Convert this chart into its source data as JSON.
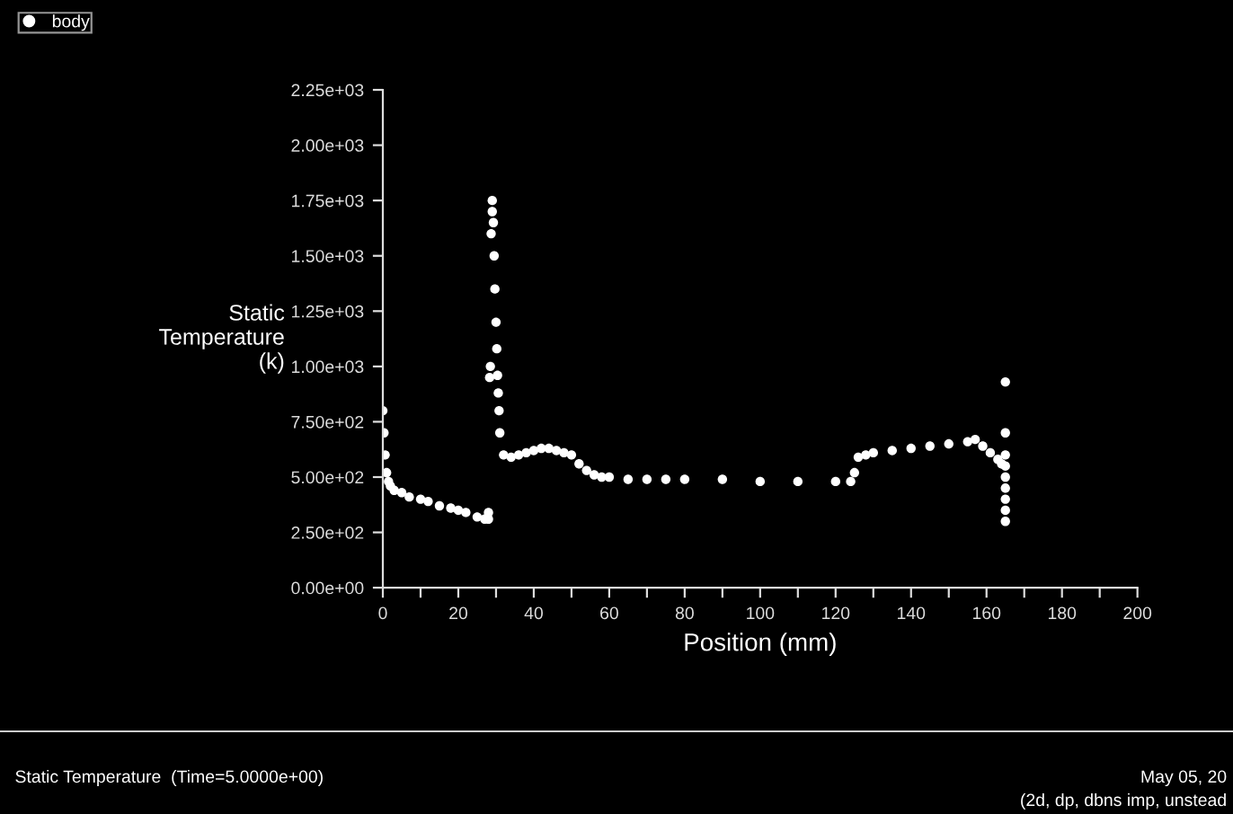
{
  "chart_data": {
    "type": "scatter",
    "xlabel": "Position (mm)",
    "ylabel": "Static\nTemperature\n(k)",
    "x": [
      0,
      0.3,
      0.6,
      1,
      1.5,
      2,
      3,
      5,
      7,
      10,
      12,
      15,
      18,
      20,
      22,
      25,
      27,
      28,
      28,
      28.3,
      28.5,
      28.7,
      29,
      29,
      29.3,
      29.5,
      29.7,
      30,
      30.2,
      30.4,
      30.6,
      30.8,
      31,
      32,
      34,
      36,
      38,
      40,
      42,
      44,
      46,
      48,
      50,
      52,
      54,
      56,
      58,
      60,
      65,
      70,
      75,
      80,
      90,
      100,
      110,
      120,
      124,
      125,
      126,
      128,
      130,
      135,
      140,
      145,
      150,
      155,
      157,
      159,
      161,
      163,
      164,
      165,
      165,
      165,
      165,
      165,
      165,
      165,
      165,
      165
    ],
    "series": [
      {
        "name": "body",
        "color": "#ffffff",
        "values": [
          800,
          700,
          600,
          520,
          480,
          460,
          440,
          430,
          410,
          400,
          390,
          370,
          360,
          350,
          340,
          320,
          310,
          310,
          340,
          950,
          1000,
          1600,
          1750,
          1700,
          1650,
          1500,
          1350,
          1200,
          1080,
          960,
          880,
          800,
          700,
          600,
          590,
          600,
          610,
          620,
          630,
          630,
          620,
          610,
          600,
          560,
          530,
          510,
          500,
          500,
          490,
          490,
          490,
          490,
          490,
          480,
          480,
          480,
          480,
          520,
          590,
          600,
          610,
          620,
          630,
          640,
          650,
          660,
          670,
          640,
          610,
          580,
          560,
          300,
          350,
          400,
          450,
          500,
          550,
          600,
          700,
          930
        ]
      }
    ],
    "xlim": [
      0,
      200
    ],
    "xticks": [
      0,
      {
        "value": 10,
        "label": null
      },
      20,
      {
        "value": 30,
        "label": null
      },
      40,
      {
        "value": 50,
        "label": null
      },
      60,
      {
        "value": 70,
        "label": null
      },
      80,
      {
        "value": 90,
        "label": null
      },
      100,
      {
        "value": 110,
        "label": null
      },
      120,
      {
        "value": 130,
        "label": null
      },
      140,
      {
        "value": 150,
        "label": null
      },
      160,
      {
        "value": 170,
        "label": null
      },
      180,
      {
        "value": 190,
        "label": null
      },
      200
    ],
    "ylim": [
      0,
      2250
    ],
    "yticks": [
      {
        "value": 0,
        "label": "0.00e+00"
      },
      {
        "value": 250,
        "label": "2.50e+02"
      },
      {
        "value": 500,
        "label": "5.00e+02"
      },
      {
        "value": 750,
        "label": "7.50e+02"
      },
      {
        "value": 1000,
        "label": "1.00e+03"
      },
      {
        "value": 1250,
        "label": "1.25e+03"
      },
      {
        "value": 1500,
        "label": "1.50e+03"
      },
      {
        "value": 1750,
        "label": "1.75e+03"
      },
      {
        "value": 2000,
        "label": "2.00e+03"
      },
      {
        "value": 2250,
        "label": "2.25e+03"
      }
    ],
    "marker": "circle",
    "legend": "top left",
    "grid": false,
    "annotations": [
      "Static Temperature  (Time=5.0000e+00)",
      "May 05, 20",
      "(2d, dp, dbns imp, unstead"
    ]
  }
}
